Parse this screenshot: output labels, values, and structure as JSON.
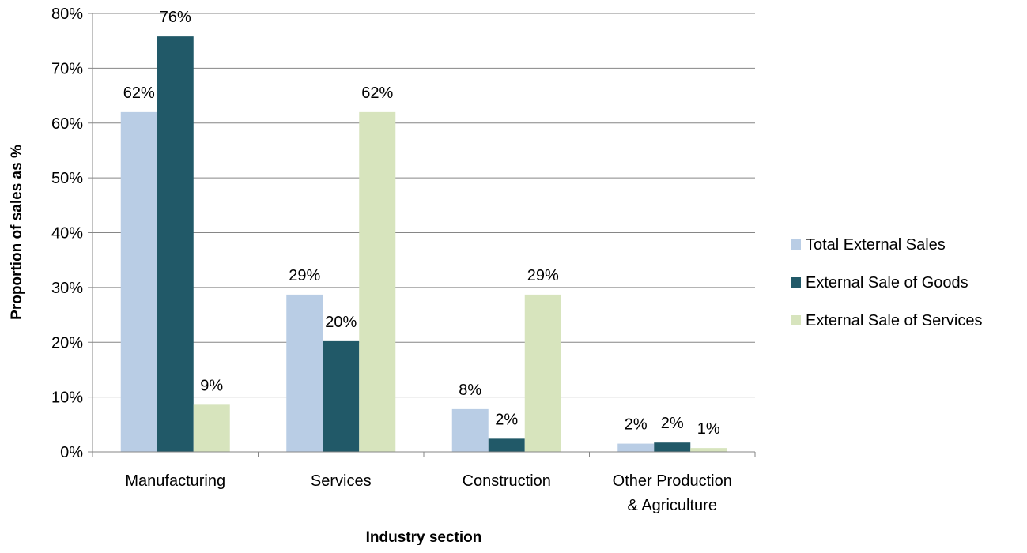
{
  "chart_data": {
    "type": "bar",
    "title": "",
    "xlabel": "Industry section",
    "ylabel": "Proportion of sales as %",
    "ylim": [
      0,
      80
    ],
    "y_ticks": [
      "0%",
      "10%",
      "20%",
      "30%",
      "40%",
      "50%",
      "60%",
      "70%",
      "80%"
    ],
    "y_tick_values": [
      0,
      10,
      20,
      30,
      40,
      50,
      60,
      70,
      80
    ],
    "categories": [
      [
        "Manufacturing"
      ],
      [
        "Services"
      ],
      [
        "Construction"
      ],
      [
        "Other Production",
        "& Agriculture"
      ]
    ],
    "series": [
      {
        "name": "Total External Sales",
        "color": "#b9cde5",
        "values": [
          62,
          28.7,
          7.8,
          1.5
        ],
        "labels": [
          "62%",
          "29%",
          "8%",
          "2%"
        ]
      },
      {
        "name": "External Sale of Goods",
        "color": "#215968",
        "values": [
          75.8,
          20.2,
          2.4,
          1.7
        ],
        "labels": [
          "76%",
          "20%",
          "2%",
          "2%"
        ]
      },
      {
        "name": "External Sale of Services",
        "color": "#d7e4bd",
        "values": [
          8.6,
          62,
          28.7,
          0.7
        ],
        "labels": [
          "9%",
          "62%",
          "29%",
          "1%"
        ]
      }
    ],
    "gridlines": true,
    "grid_color": "#868686",
    "legend_position": "right"
  }
}
